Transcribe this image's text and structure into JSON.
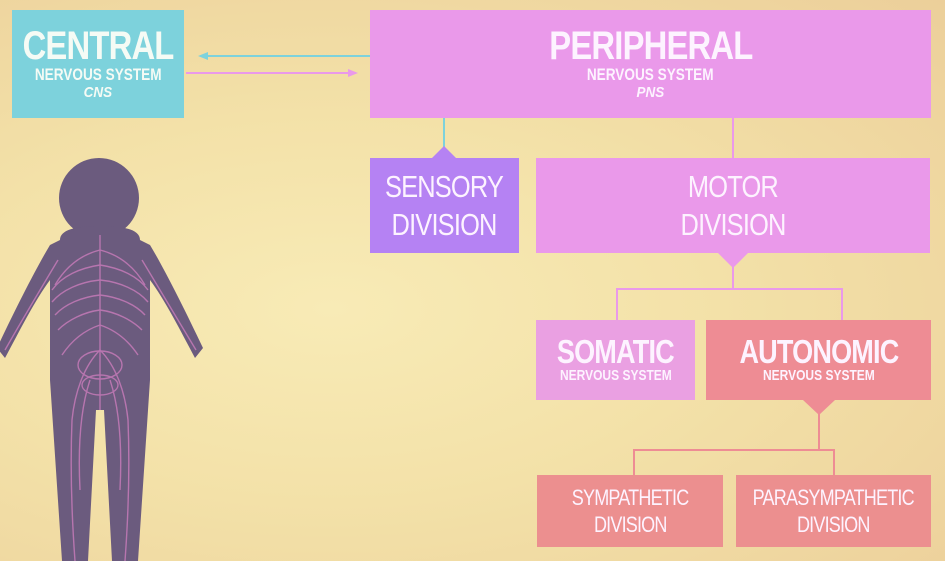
{
  "colors": {
    "background": "#f3e1a8",
    "cns": "#7dd2dc",
    "pns": "#ea99ea",
    "sensory": "#b582f3",
    "motor": "#ea99ea",
    "somatic": "#eaa0e2",
    "autonomic": "#ee8c94",
    "sympathetic": "#ec8f8f",
    "parasympathetic": "#ec8f8f",
    "person": "#6b5b7e"
  },
  "cns": {
    "title": "CENTRAL",
    "subtitle": "NERVOUS SYSTEM",
    "abbr": "CNS"
  },
  "pns": {
    "title": "PERIPHERAL",
    "subtitle": "NERVOUS SYSTEM",
    "abbr": "PNS"
  },
  "sensory": {
    "line1": "SENSORY",
    "line2": "DIVISION"
  },
  "motor": {
    "line1": "MOTOR",
    "line2": "DIVISION"
  },
  "somatic": {
    "title": "SOMATIC",
    "subtitle": "NERVOUS SYSTEM"
  },
  "autonomic": {
    "title": "AUTONOMIC",
    "subtitle": "NERVOUS SYSTEM"
  },
  "sympathetic": {
    "line1": "SYMPATHETIC",
    "line2": "DIVISION"
  },
  "parasympathetic": {
    "line1": "PARASYMPATHETIC",
    "line2": "DIVISION"
  },
  "figure": {
    "icon": "human-body-figure"
  }
}
